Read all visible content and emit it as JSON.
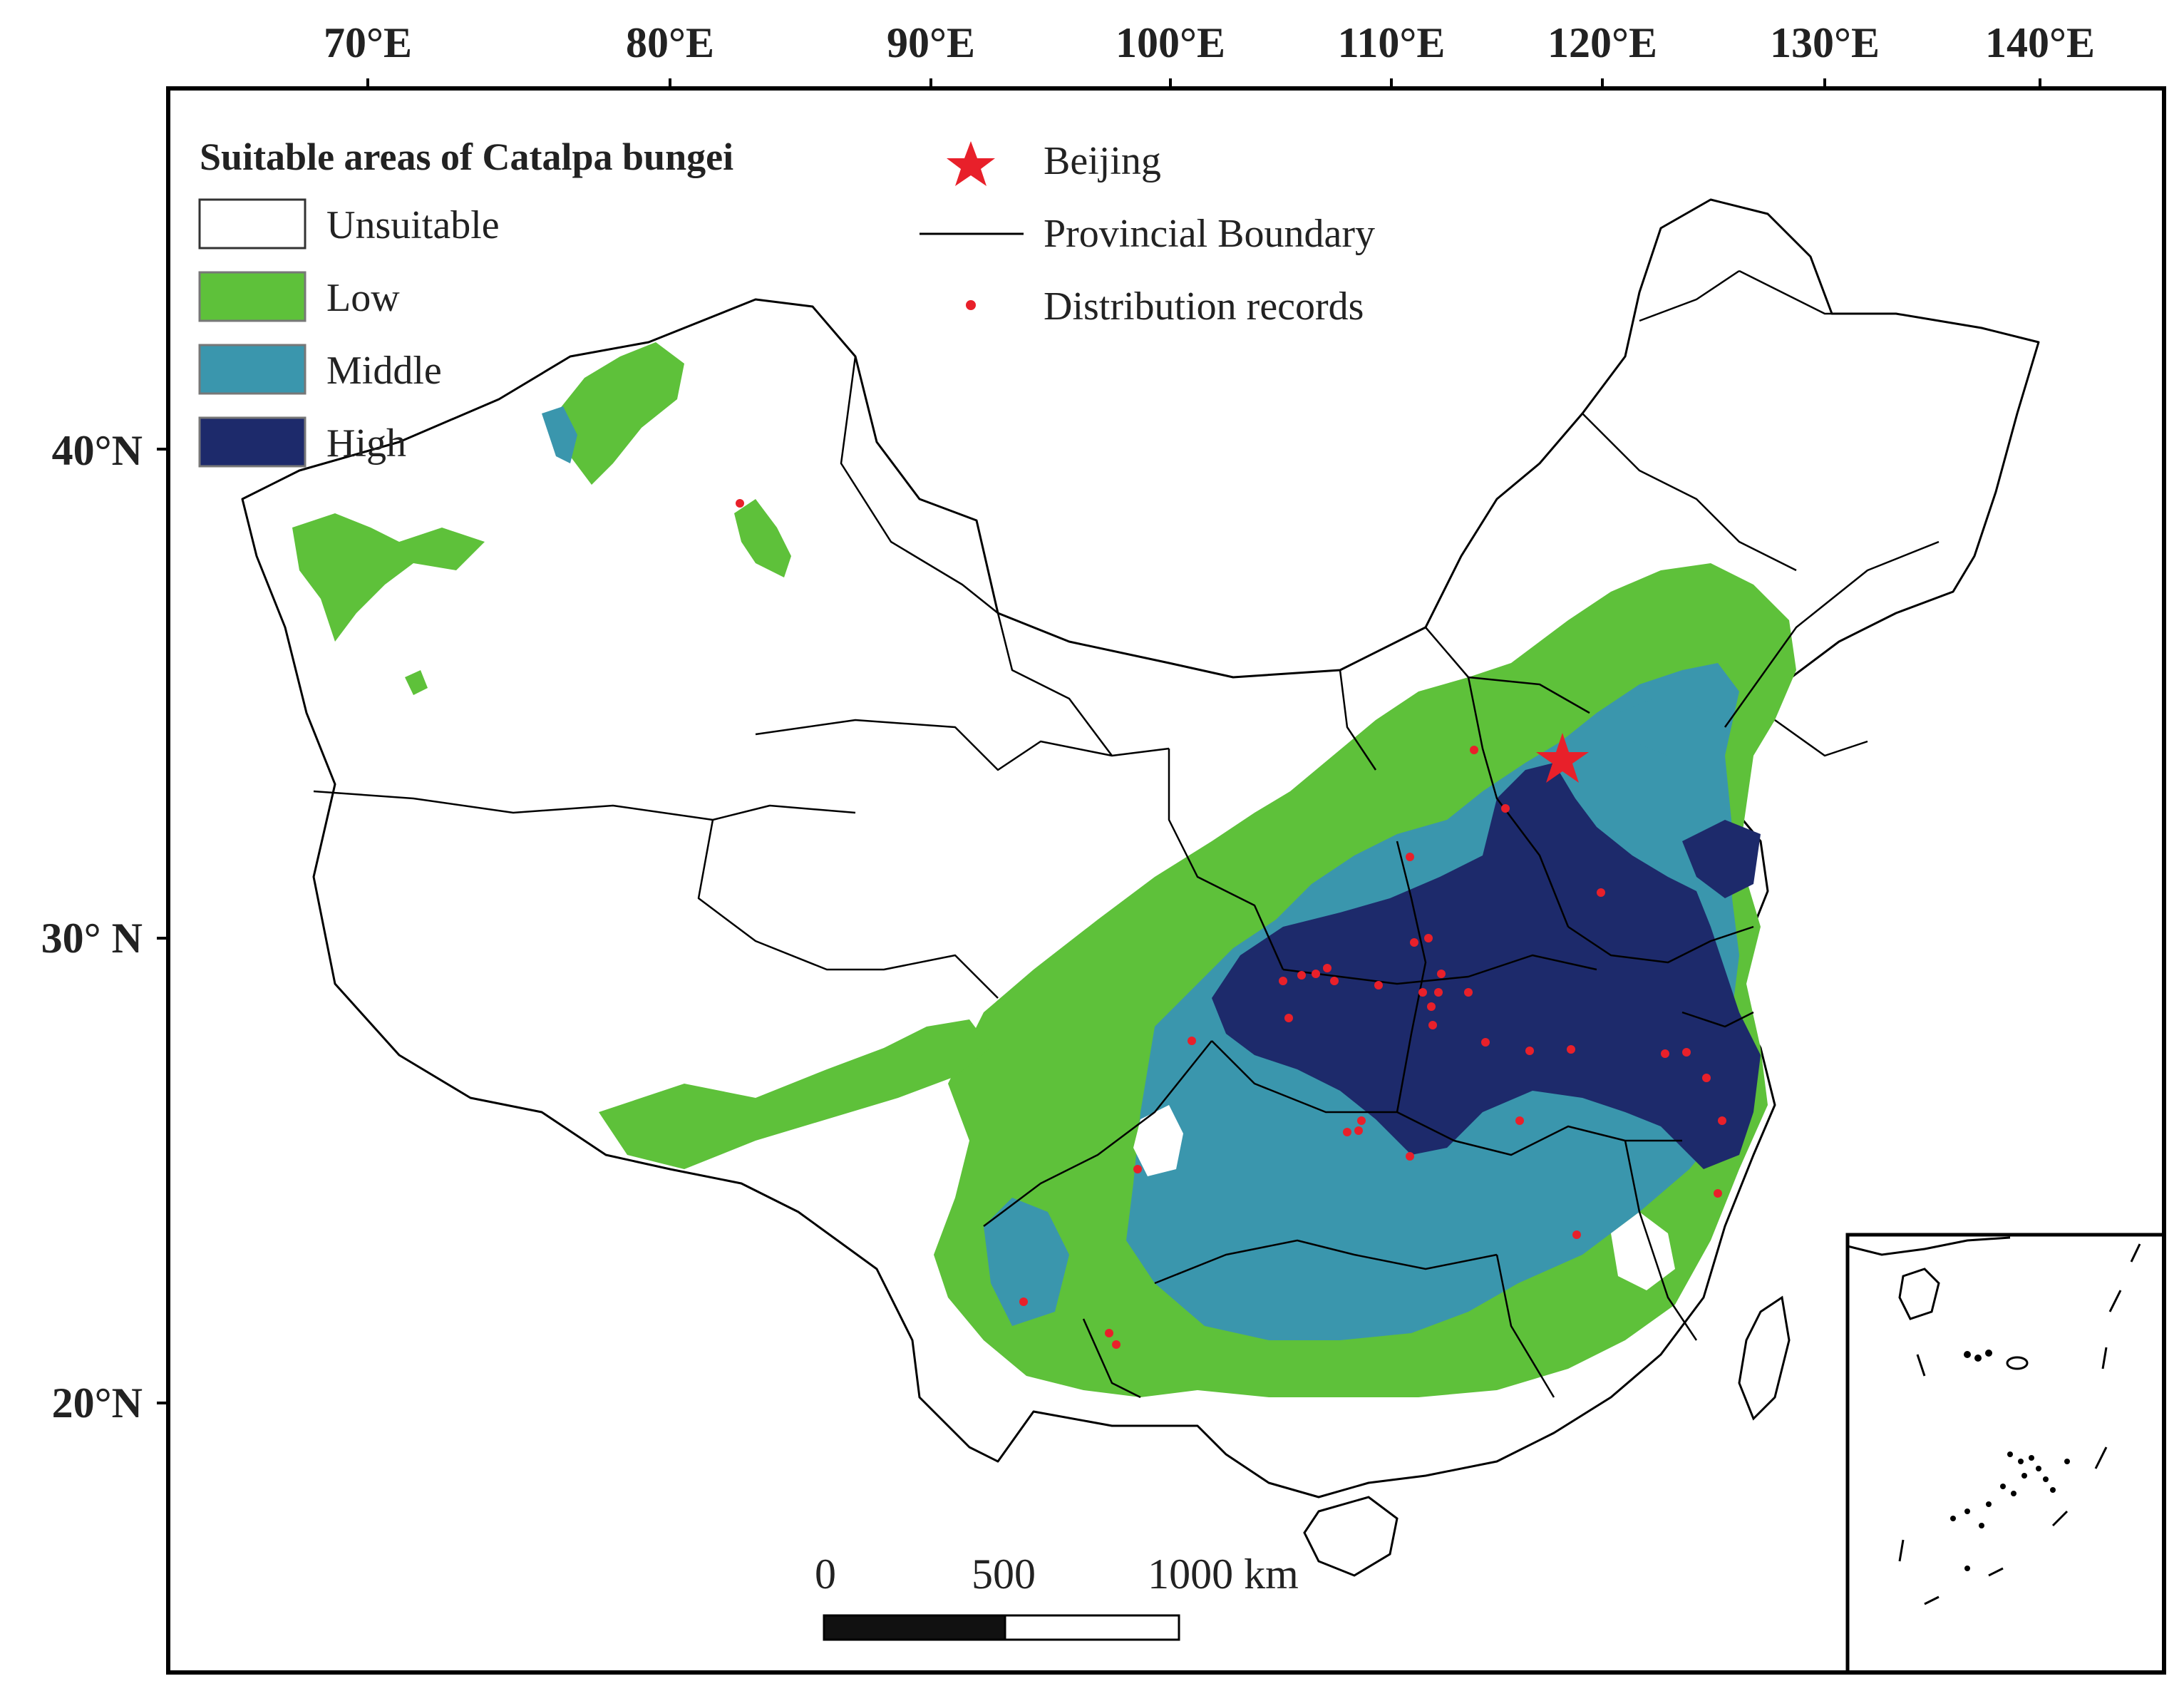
{
  "axes": {
    "lon_labels": [
      "70°E",
      "80°E",
      "90°E",
      "100°E",
      "110°E",
      "120°E",
      "130°E",
      "140°E"
    ],
    "lat_labels": [
      "40°N",
      "30° N",
      "20°N"
    ]
  },
  "legend": {
    "title": "Suitable areas of Catalpa bungei",
    "classes": [
      {
        "label": "Unsuitable",
        "color": "#ffffff"
      },
      {
        "label": "Low",
        "color": "#5ec13a"
      },
      {
        "label": "Middle",
        "color": "#3a96ad"
      },
      {
        "label": "High",
        "color": "#1d2a6b"
      }
    ],
    "symbols": [
      {
        "label": "Beijing",
        "symbol": "star",
        "color": "#e8202a"
      },
      {
        "label": "Provincial Boundary",
        "symbol": "line",
        "color": "#000000"
      },
      {
        "label": "Distribution records",
        "symbol": "dot",
        "color": "#e8202a"
      }
    ]
  },
  "scale_bar": {
    "labels": [
      "0",
      "500",
      "1000 km"
    ]
  }
}
